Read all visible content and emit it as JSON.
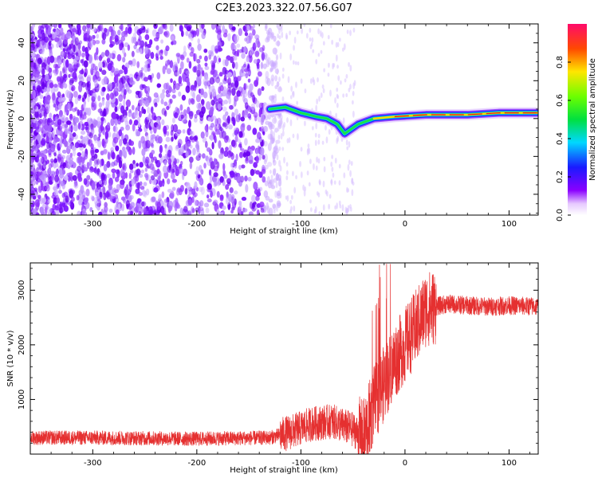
{
  "figure_title": "C2E3.2023.322.07.56.G07",
  "colors": {
    "series": "#e53030",
    "signal_core": "#e8241c"
  },
  "chart_data": [
    {
      "type": "heatmap",
      "title": "",
      "xlabel": "Height of straight line (km)",
      "ylabel": "Frequency (Hz)",
      "xlim": [
        -360,
        128
      ],
      "ylim": [
        -51,
        50
      ],
      "xticks": [
        -300,
        -200,
        -100,
        0,
        100
      ],
      "yticks": [
        -40,
        -20,
        0,
        20,
        40
      ],
      "colorbar": {
        "label": "Normalized spectral amplitude",
        "ticks": [
          "0.0",
          "0.2",
          "0.4",
          "0.6",
          "0.8"
        ],
        "range": [
          0,
          1
        ]
      },
      "signal_trace": [
        {
          "x": -130,
          "y": 5
        },
        {
          "x": -115,
          "y": 6
        },
        {
          "x": -100,
          "y": 3
        },
        {
          "x": -85,
          "y": 1
        },
        {
          "x": -75,
          "y": 0
        },
        {
          "x": -65,
          "y": -3
        },
        {
          "x": -58,
          "y": -8
        },
        {
          "x": -45,
          "y": -3
        },
        {
          "x": -30,
          "y": 0
        },
        {
          "x": -10,
          "y": 1
        },
        {
          "x": 20,
          "y": 2
        },
        {
          "x": 60,
          "y": 2
        },
        {
          "x": 90,
          "y": 3
        },
        {
          "x": 128,
          "y": 3
        }
      ],
      "grid": false,
      "legend": "none"
    },
    {
      "type": "line",
      "title": "",
      "xlabel": "Height of straight line (km)",
      "ylabel": "SNR (10 * v/v)",
      "xlim": [
        -360,
        128
      ],
      "ylim": [
        0,
        3500
      ],
      "xticks": [
        -300,
        -200,
        -100,
        0,
        100
      ],
      "yticks": [
        1000,
        2000,
        3000
      ],
      "series": [
        {
          "values": [
            {
              "x": -360,
              "y": 300
            },
            {
              "x": -300,
              "y": 300
            },
            {
              "x": -200,
              "y": 280
            },
            {
              "x": -130,
              "y": 300
            },
            {
              "x": -110,
              "y": 400
            },
            {
              "x": -90,
              "y": 550
            },
            {
              "x": -70,
              "y": 600
            },
            {
              "x": -50,
              "y": 450
            },
            {
              "x": -40,
              "y": 300
            },
            {
              "x": -30,
              "y": 900
            },
            {
              "x": -20,
              "y": 1300
            },
            {
              "x": -10,
              "y": 1700
            },
            {
              "x": 0,
              "y": 2000
            },
            {
              "x": 10,
              "y": 2300
            },
            {
              "x": 20,
              "y": 2650
            },
            {
              "x": 40,
              "y": 2750
            },
            {
              "x": 60,
              "y": 2720
            },
            {
              "x": 80,
              "y": 2700
            },
            {
              "x": 100,
              "y": 2720
            },
            {
              "x": 128,
              "y": 2700
            }
          ]
        }
      ],
      "grid": false,
      "legend": "none"
    }
  ]
}
